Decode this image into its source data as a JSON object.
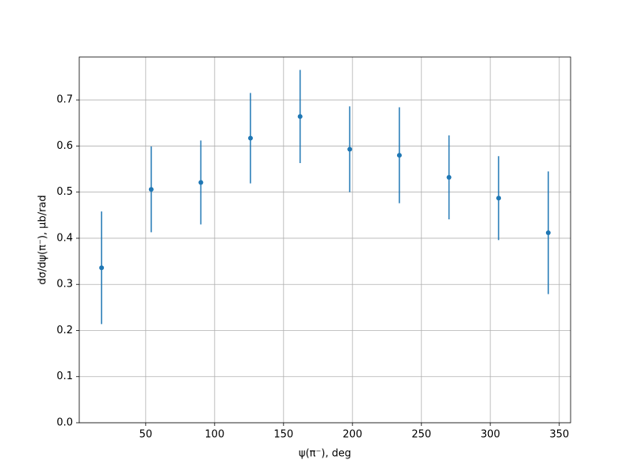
{
  "chart_data": {
    "type": "errorbar",
    "xlabel": "ψ(π⁻), deg",
    "ylabel": "dσ/dψ(π⁻), μb/rad",
    "x": [
      18,
      54,
      90,
      126,
      162,
      198,
      234,
      270,
      306,
      342
    ],
    "series": [
      {
        "color": "#1f77b4",
        "values": [
          0.336,
          0.506,
          0.521,
          0.617,
          0.664,
          0.593,
          0.58,
          0.532,
          0.487,
          0.412
        ],
        "errors": [
          0.122,
          0.093,
          0.091,
          0.098,
          0.101,
          0.093,
          0.104,
          0.091,
          0.091,
          0.133
        ]
      }
    ],
    "xlim": [
      1.8,
      358.2
    ],
    "ylim": [
      0,
      0.793
    ],
    "xticks": [
      50,
      100,
      150,
      200,
      250,
      300,
      350
    ],
    "yticks": [
      {
        "value": 0,
        "label": "0.0"
      },
      0.1,
      0.2,
      0.3,
      0.4,
      0.5,
      0.6,
      0.7
    ],
    "grid": true
  }
}
